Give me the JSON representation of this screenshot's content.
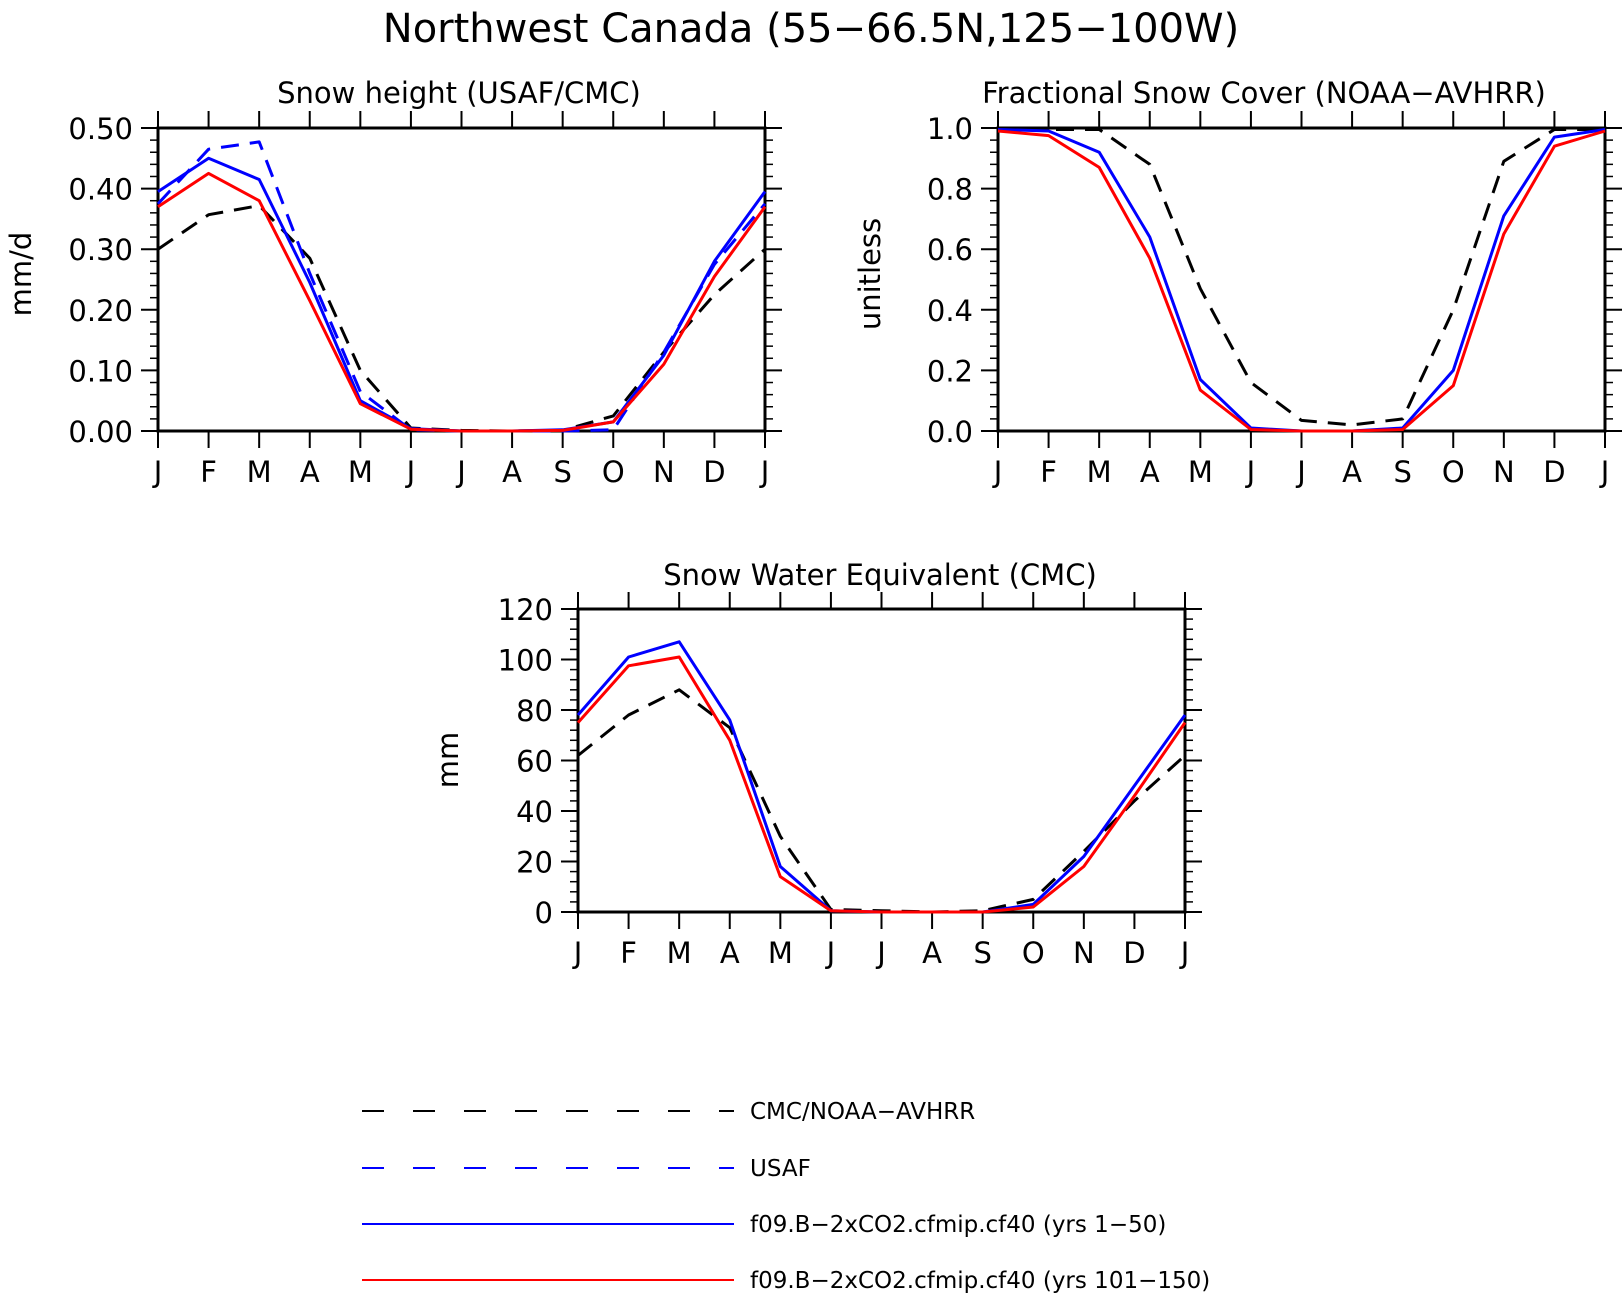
{
  "figure": {
    "title": "Northwest Canada (55−66.5N,125−100W)"
  },
  "colors": {
    "obs": "#000000",
    "usaf": "#0000ff",
    "run1": "#0000ff",
    "run2": "#ff0000"
  },
  "legend": [
    {
      "key": "obs",
      "label": "CMC/NOAA−AVHRR",
      "style": "dashed"
    },
    {
      "key": "usaf",
      "label": "USAF",
      "style": "dashed"
    },
    {
      "key": "run1",
      "label": "f09.B−2xCO2.cfmip.cf40 (yrs 1−50)",
      "style": "solid"
    },
    {
      "key": "run2",
      "label": "f09.B−2xCO2.cfmip.cf40 (yrs 101−150)",
      "style": "solid"
    }
  ],
  "chart_data": [
    {
      "type": "line",
      "title": "Snow height (USAF/CMC)",
      "ylabel": "mm/d",
      "xlabel": "",
      "categories": [
        "J",
        "F",
        "M",
        "A",
        "M",
        "J",
        "J",
        "A",
        "S",
        "O",
        "N",
        "D",
        "J"
      ],
      "ylim": [
        0,
        0.5
      ],
      "yticks": [
        "0.00",
        "0.10",
        "0.20",
        "0.30",
        "0.40",
        "0.50"
      ],
      "grid": false,
      "series": [
        {
          "name": "CMC/NOAA−AVHRR",
          "key": "obs",
          "values": [
            0.3,
            0.357,
            0.372,
            0.285,
            0.1,
            0.005,
            0.001,
            0.0,
            0.001,
            0.025,
            0.13,
            0.225,
            0.3
          ]
        },
        {
          "name": "USAF",
          "key": "usaf",
          "values": [
            0.375,
            0.465,
            0.477,
            0.26,
            0.065,
            0.002,
            0.0,
            0.0,
            0.0,
            0.002,
            0.13,
            0.275,
            0.375
          ]
        },
        {
          "name": "f09.B−2xCO2.cfmip.cf40 (yrs 1−50)",
          "key": "run1",
          "values": [
            0.395,
            0.45,
            0.415,
            0.245,
            0.05,
            0.004,
            0.0,
            0.0,
            0.002,
            0.015,
            0.125,
            0.28,
            0.395
          ]
        },
        {
          "name": "f09.B−2xCO2.cfmip.cf40 (yrs 101−150)",
          "key": "run2",
          "values": [
            0.37,
            0.425,
            0.38,
            0.215,
            0.045,
            0.003,
            0.0,
            0.0,
            0.001,
            0.015,
            0.11,
            0.255,
            0.37
          ]
        }
      ]
    },
    {
      "type": "line",
      "title": "Fractional Snow Cover (NOAA−AVHRR)",
      "ylabel": "unitless",
      "xlabel": "",
      "categories": [
        "J",
        "F",
        "M",
        "A",
        "M",
        "J",
        "J",
        "A",
        "S",
        "O",
        "N",
        "D",
        "J"
      ],
      "ylim": [
        0,
        1.0
      ],
      "yticks": [
        "0.0",
        "0.2",
        "0.4",
        "0.6",
        "0.8",
        "1.0"
      ],
      "grid": false,
      "series": [
        {
          "name": "CMC/NOAA−AVHRR",
          "key": "obs",
          "values": [
            0.995,
            0.995,
            0.995,
            0.88,
            0.47,
            0.16,
            0.035,
            0.02,
            0.04,
            0.4,
            0.89,
            0.995,
            0.995
          ]
        },
        {
          "name": "f09.B−2xCO2.cfmip.cf40 (yrs 1−50)",
          "key": "run1",
          "values": [
            0.995,
            0.99,
            0.92,
            0.64,
            0.17,
            0.01,
            0.0,
            0.0,
            0.01,
            0.2,
            0.71,
            0.97,
            0.995
          ]
        },
        {
          "name": "f09.B−2xCO2.cfmip.cf40 (yrs 101−150)",
          "key": "run2",
          "values": [
            0.99,
            0.975,
            0.87,
            0.57,
            0.135,
            0.005,
            0.0,
            0.0,
            0.005,
            0.15,
            0.65,
            0.94,
            0.99
          ]
        }
      ]
    },
    {
      "type": "line",
      "title": "Snow Water Equivalent (CMC)",
      "ylabel": "mm",
      "xlabel": "",
      "categories": [
        "J",
        "F",
        "M",
        "A",
        "M",
        "J",
        "J",
        "A",
        "S",
        "O",
        "N",
        "D",
        "J"
      ],
      "ylim": [
        0,
        120
      ],
      "yticks": [
        "0",
        "20",
        "40",
        "60",
        "80",
        "100",
        "120"
      ],
      "grid": false,
      "series": [
        {
          "name": "CMC/NOAA−AVHRR",
          "key": "obs",
          "values": [
            62,
            78,
            88,
            73,
            30,
            1,
            0.5,
            0,
            0.5,
            5,
            24,
            44,
            62
          ]
        },
        {
          "name": "f09.B−2xCO2.cfmip.cf40 (yrs 1−50)",
          "key": "run1",
          "values": [
            78,
            101,
            107,
            76,
            18,
            0.5,
            0,
            0,
            0,
            3,
            22,
            50,
            78
          ]
        },
        {
          "name": "f09.B−2xCO2.cfmip.cf40 (yrs 101−150)",
          "key": "run2",
          "values": [
            75,
            97.5,
            101,
            68,
            14,
            0.5,
            0,
            0,
            0,
            2,
            18,
            46,
            75
          ]
        }
      ]
    }
  ]
}
